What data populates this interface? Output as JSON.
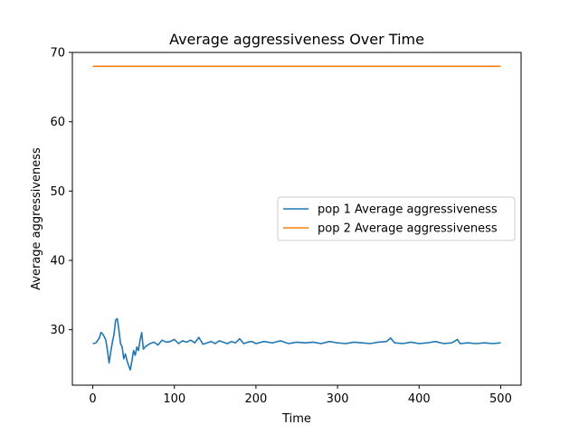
{
  "chart_data": {
    "type": "line",
    "title": "Average aggressiveness Over Time",
    "xlabel": "Time",
    "ylabel": "Average aggressiveness",
    "xlim": [
      -25,
      525
    ],
    "ylim": [
      22,
      70
    ],
    "xticks": [
      0,
      100,
      200,
      300,
      400,
      500
    ],
    "yticks": [
      30,
      40,
      50,
      60,
      70
    ],
    "grid": false,
    "legend_position": "center-right",
    "series": [
      {
        "name": "pop 1 Average aggressiveness",
        "color": "#1f77b4",
        "x": [
          0,
          4,
          8,
          10,
          12,
          14,
          16,
          18,
          20,
          22,
          24,
          26,
          28,
          30,
          32,
          34,
          36,
          38,
          40,
          42,
          44,
          46,
          48,
          50,
          52,
          54,
          56,
          58,
          60,
          62,
          65,
          70,
          75,
          80,
          85,
          90,
          95,
          100,
          105,
          110,
          115,
          120,
          125,
          130,
          135,
          140,
          145,
          150,
          155,
          160,
          165,
          170,
          175,
          180,
          185,
          190,
          195,
          200,
          210,
          220,
          230,
          240,
          250,
          260,
          270,
          280,
          290,
          300,
          310,
          320,
          330,
          340,
          350,
          360,
          365,
          370,
          380,
          390,
          400,
          410,
          420,
          430,
          440,
          447,
          450,
          460,
          470,
          480,
          490,
          500
        ],
        "y": [
          28.0,
          28.1,
          28.8,
          29.6,
          29.4,
          29.0,
          28.5,
          27.0,
          25.2,
          26.8,
          28.2,
          29.3,
          31.4,
          31.6,
          30.0,
          28.0,
          27.5,
          25.8,
          26.5,
          25.5,
          24.8,
          24.2,
          25.5,
          27.0,
          26.3,
          27.5,
          27.0,
          28.5,
          29.6,
          27.2,
          27.6,
          28.0,
          28.2,
          27.8,
          28.5,
          28.2,
          28.3,
          28.6,
          28.0,
          28.4,
          28.2,
          28.5,
          28.1,
          28.9,
          27.9,
          28.1,
          28.3,
          28.0,
          28.4,
          28.2,
          28.0,
          28.3,
          28.1,
          28.7,
          28.0,
          28.2,
          28.3,
          28.0,
          28.3,
          28.1,
          28.4,
          28.0,
          28.2,
          28.1,
          28.2,
          28.0,
          28.3,
          28.1,
          28.0,
          28.2,
          28.1,
          28.0,
          28.2,
          28.3,
          28.8,
          28.1,
          28.0,
          28.2,
          28.0,
          28.1,
          28.3,
          28.0,
          28.1,
          28.6,
          28.0,
          28.1,
          28.0,
          28.1,
          28.0,
          28.1
        ]
      },
      {
        "name": "pop 2 Average aggressiveness",
        "color": "#ff7f0e",
        "x": [
          0,
          500
        ],
        "y": [
          68,
          68
        ]
      }
    ]
  }
}
